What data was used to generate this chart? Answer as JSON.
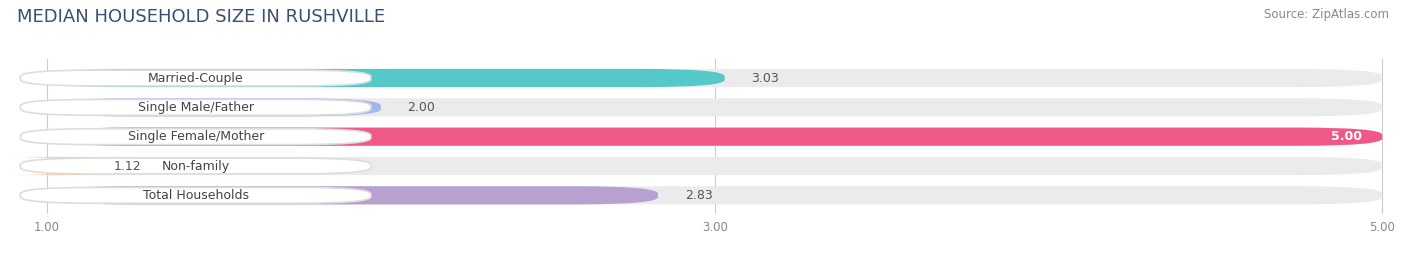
{
  "title": "MEDIAN HOUSEHOLD SIZE IN RUSHVILLE",
  "source": "Source: ZipAtlas.com",
  "categories": [
    "Married-Couple",
    "Single Male/Father",
    "Single Female/Mother",
    "Non-family",
    "Total Households"
  ],
  "values": [
    3.03,
    2.0,
    5.0,
    1.12,
    2.83
  ],
  "bar_colors": [
    "#55c8c8",
    "#a0b8e8",
    "#f05888",
    "#f8c898",
    "#b8a0d0"
  ],
  "bar_bg_color": "#ebebeb",
  "xmin": 1.0,
  "xmax": 5.0,
  "xticks": [
    1.0,
    3.0,
    5.0
  ],
  "xtick_labels": [
    "1.00",
    "3.00",
    "5.00"
  ],
  "title_fontsize": 13,
  "label_fontsize": 9,
  "value_fontsize": 9,
  "source_fontsize": 8.5,
  "background_color": "#ffffff"
}
